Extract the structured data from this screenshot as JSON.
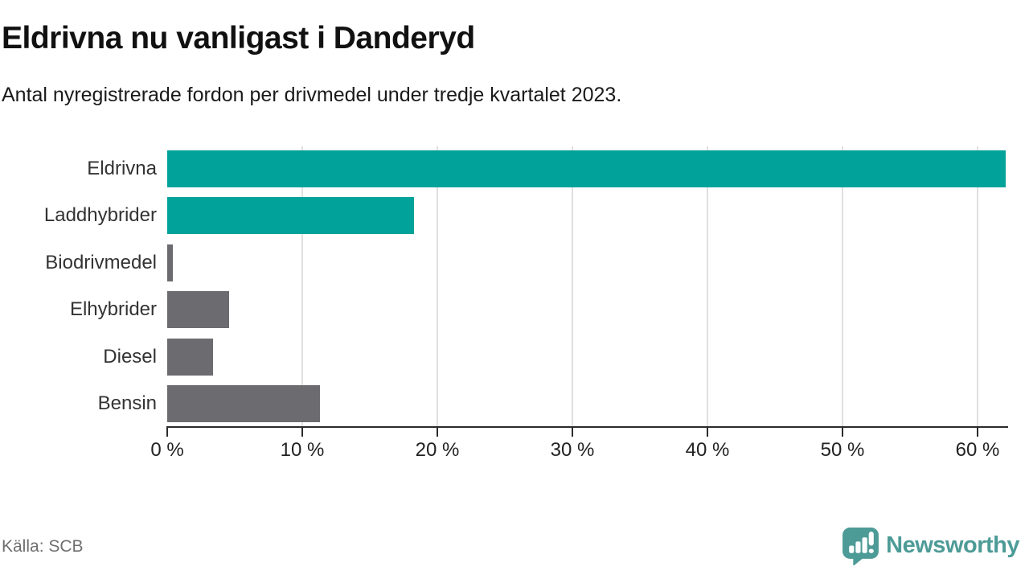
{
  "header": {
    "title": "Eldrivna nu vanligast i Danderyd",
    "subtitle": "Antal nyregistrerade fordon per drivmedel under tredje kvartalet 2023."
  },
  "chart_data": {
    "type": "bar",
    "orientation": "horizontal",
    "title": "Eldrivna nu vanligast i Danderyd",
    "subtitle": "Antal nyregistrerade fordon per drivmedel under tredje kvartalet 2023.",
    "categories": [
      "Eldrivna",
      "Laddhybrider",
      "Biodrivmedel",
      "Elhybrider",
      "Diesel",
      "Bensin"
    ],
    "values": [
      62.1,
      18.3,
      0.4,
      4.6,
      3.4,
      11.3
    ],
    "unit": "%",
    "bar_colors": [
      "#00a29a",
      "#00a29a",
      "#6b6b70",
      "#6b6b70",
      "#6b6b70",
      "#6b6b70"
    ],
    "xlabel": "",
    "ylabel": "",
    "xlim": [
      0,
      62.2
    ],
    "x_ticks": [
      0,
      10,
      20,
      30,
      40,
      50,
      60
    ],
    "x_tick_format": "{v} %",
    "grid": "vertical-only",
    "legend": false
  },
  "footer": {
    "source": "Källa: SCB",
    "brand": "Newsworthy",
    "brand_icon": "newsworthy-speech-bubble-bar-chart-icon"
  },
  "colors": {
    "accent_teal": "#00a29a",
    "bar_gray": "#6b6b70",
    "gridline": "#e0e0e0",
    "axis": "#2b2b2b",
    "logo_teal": "#4d9b97"
  }
}
